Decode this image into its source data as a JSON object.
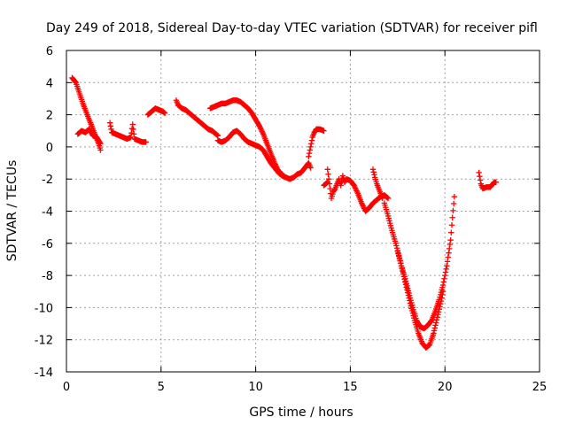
{
  "chart_data": {
    "type": "scatter",
    "title": "Day 249 of 2018, Sidereal Day-to-day VTEC variation (SDTVAR) for receiver pifl",
    "xlabel": "GPS time / hours",
    "ylabel": "SDTVAR / TECUs",
    "xlim": [
      0,
      25
    ],
    "ylim": [
      -14,
      6
    ],
    "xticks": [
      0,
      5,
      10,
      15,
      20,
      25
    ],
    "yticks": [
      -14,
      -12,
      -10,
      -8,
      -6,
      -4,
      -2,
      0,
      2,
      4,
      6
    ],
    "xtick_labels": [
      "0",
      "5",
      "10",
      "15",
      "20",
      "25"
    ],
    "ytick_labels": [
      "-14",
      "-12",
      "-10",
      "-8",
      "-6",
      "-4",
      "-2",
      "0",
      "2",
      "4",
      "6"
    ],
    "grid": true,
    "marker": "+",
    "series": [
      {
        "name": "SDTVAR",
        "color": "#ff0000",
        "tracks": [
          [
            [
              0.3,
              4.3
            ],
            [
              0.5,
              4.0
            ],
            [
              0.7,
              3.3
            ],
            [
              0.9,
              2.6
            ],
            [
              1.1,
              2.0
            ],
            [
              1.3,
              1.4
            ],
            [
              1.5,
              0.8
            ],
            [
              1.7,
              0.2
            ],
            [
              1.8,
              -0.2
            ]
          ],
          [
            [
              0.6,
              0.8
            ],
            [
              0.8,
              1.0
            ],
            [
              1.0,
              0.9
            ],
            [
              1.2,
              1.1
            ],
            [
              1.4,
              0.7
            ],
            [
              1.6,
              0.6
            ],
            [
              1.8,
              0.2
            ]
          ],
          [
            [
              2.3,
              1.5
            ],
            [
              2.4,
              0.9
            ],
            [
              2.6,
              0.8
            ],
            [
              2.8,
              0.7
            ],
            [
              3.0,
              0.6
            ],
            [
              3.2,
              0.5
            ],
            [
              3.4,
              0.6
            ],
            [
              3.5,
              1.4
            ],
            [
              3.6,
              0.5
            ],
            [
              3.8,
              0.4
            ],
            [
              4.0,
              0.3
            ],
            [
              4.2,
              0.3
            ]
          ],
          [
            [
              4.3,
              2.0
            ],
            [
              4.5,
              2.2
            ],
            [
              4.7,
              2.4
            ],
            [
              4.9,
              2.3
            ],
            [
              5.1,
              2.2
            ],
            [
              5.2,
              2.1
            ]
          ],
          [
            [
              5.8,
              2.9
            ],
            [
              5.9,
              2.6
            ],
            [
              6.1,
              2.4
            ],
            [
              6.3,
              2.3
            ],
            [
              6.5,
              2.1
            ],
            [
              6.7,
              1.9
            ],
            [
              6.9,
              1.7
            ],
            [
              7.1,
              1.5
            ],
            [
              7.3,
              1.3
            ],
            [
              7.5,
              1.1
            ],
            [
              7.7,
              1.0
            ],
            [
              7.9,
              0.8
            ],
            [
              8.0,
              0.7
            ]
          ],
          [
            [
              8.0,
              0.4
            ],
            [
              8.2,
              0.3
            ],
            [
              8.4,
              0.4
            ],
            [
              8.6,
              0.6
            ],
            [
              8.8,
              0.9
            ],
            [
              9.0,
              1.0
            ],
            [
              9.2,
              0.8
            ],
            [
              9.4,
              0.5
            ],
            [
              9.6,
              0.3
            ],
            [
              9.8,
              0.2
            ],
            [
              10.0,
              0.1
            ],
            [
              10.2,
              0.0
            ],
            [
              10.4,
              -0.2
            ],
            [
              10.6,
              -0.6
            ],
            [
              10.8,
              -1.0
            ],
            [
              11.0,
              -1.3
            ],
            [
              11.2,
              -1.6
            ],
            [
              11.4,
              -1.8
            ],
            [
              11.6,
              -1.9
            ],
            [
              11.8,
              -2.0
            ],
            [
              12.0,
              -1.9
            ],
            [
              12.2,
              -1.7
            ],
            [
              12.4,
              -1.6
            ],
            [
              12.6,
              -1.3
            ],
            [
              12.8,
              -1.0
            ],
            [
              12.9,
              -1.3
            ]
          ],
          [
            [
              7.6,
              2.4
            ],
            [
              7.8,
              2.5
            ],
            [
              8.0,
              2.6
            ],
            [
              8.2,
              2.7
            ],
            [
              8.4,
              2.7
            ],
            [
              8.6,
              2.8
            ],
            [
              8.8,
              2.9
            ],
            [
              9.0,
              2.9
            ],
            [
              9.2,
              2.8
            ],
            [
              9.4,
              2.6
            ],
            [
              9.6,
              2.4
            ],
            [
              9.8,
              2.1
            ],
            [
              10.0,
              1.7
            ],
            [
              10.2,
              1.3
            ],
            [
              10.4,
              0.8
            ],
            [
              10.6,
              0.2
            ],
            [
              10.8,
              -0.4
            ],
            [
              11.0,
              -1.0
            ],
            [
              11.2,
              -1.5
            ],
            [
              11.4,
              -1.7
            ]
          ],
          [
            [
              12.8,
              -0.6
            ],
            [
              12.9,
              0.0
            ],
            [
              13.0,
              0.6
            ],
            [
              13.1,
              0.9
            ],
            [
              13.2,
              1.1
            ],
            [
              13.4,
              1.1
            ],
            [
              13.6,
              1.0
            ]
          ],
          [
            [
              13.6,
              -2.4
            ],
            [
              13.8,
              -2.2
            ]
          ],
          [
            [
              13.8,
              -1.4
            ],
            [
              13.9,
              -2.3
            ],
            [
              14.0,
              -3.2
            ],
            [
              14.1,
              -2.8
            ],
            [
              14.2,
              -2.6
            ],
            [
              14.3,
              -2.3
            ],
            [
              14.4,
              -2.0
            ],
            [
              14.5,
              -2.4
            ],
            [
              14.6,
              -1.8
            ],
            [
              14.7,
              -2.2
            ],
            [
              14.8,
              -2.0
            ],
            [
              15.0,
              -2.1
            ],
            [
              15.2,
              -2.4
            ],
            [
              15.4,
              -2.9
            ],
            [
              15.6,
              -3.5
            ],
            [
              15.8,
              -4.0
            ],
            [
              16.0,
              -3.8
            ],
            [
              16.2,
              -3.5
            ],
            [
              16.4,
              -3.3
            ],
            [
              16.6,
              -3.1
            ],
            [
              16.8,
              -3.0
            ],
            [
              17.0,
              -3.2
            ]
          ],
          [
            [
              16.2,
              -1.4
            ],
            [
              16.3,
              -1.9
            ],
            [
              16.4,
              -2.3
            ],
            [
              16.5,
              -2.6
            ],
            [
              16.6,
              -2.9
            ],
            [
              16.7,
              -3.2
            ]
          ],
          [
            [
              16.8,
              -3.5
            ],
            [
              17.0,
              -4.3
            ],
            [
              17.2,
              -5.2
            ],
            [
              17.4,
              -6.0
            ],
            [
              17.6,
              -6.9
            ],
            [
              17.8,
              -7.9
            ],
            [
              18.0,
              -8.9
            ],
            [
              18.2,
              -9.9
            ],
            [
              18.4,
              -10.8
            ],
            [
              18.6,
              -11.6
            ],
            [
              18.8,
              -12.2
            ],
            [
              19.0,
              -12.5
            ],
            [
              19.2,
              -12.3
            ],
            [
              19.4,
              -11.6
            ],
            [
              19.6,
              -10.6
            ],
            [
              19.8,
              -9.6
            ],
            [
              19.9,
              -9.0
            ]
          ],
          [
            [
              17.5,
              -6.5
            ],
            [
              17.7,
              -7.4
            ],
            [
              17.9,
              -8.2
            ],
            [
              18.1,
              -9.1
            ],
            [
              18.3,
              -10.0
            ],
            [
              18.5,
              -10.8
            ],
            [
              18.7,
              -11.2
            ],
            [
              18.9,
              -11.3
            ],
            [
              19.1,
              -11.1
            ],
            [
              19.3,
              -10.8
            ],
            [
              19.5,
              -10.2
            ],
            [
              19.7,
              -9.5
            ],
            [
              19.9,
              -8.6
            ],
            [
              20.1,
              -7.4
            ],
            [
              20.3,
              -5.8
            ],
            [
              20.4,
              -4.4
            ],
            [
              20.5,
              -3.1
            ]
          ],
          [
            [
              21.8,
              -1.6
            ],
            [
              21.9,
              -2.3
            ],
            [
              22.0,
              -2.6
            ],
            [
              22.2,
              -2.5
            ],
            [
              22.4,
              -2.5
            ],
            [
              22.6,
              -2.2
            ],
            [
              22.7,
              -2.2
            ]
          ]
        ]
      }
    ]
  }
}
